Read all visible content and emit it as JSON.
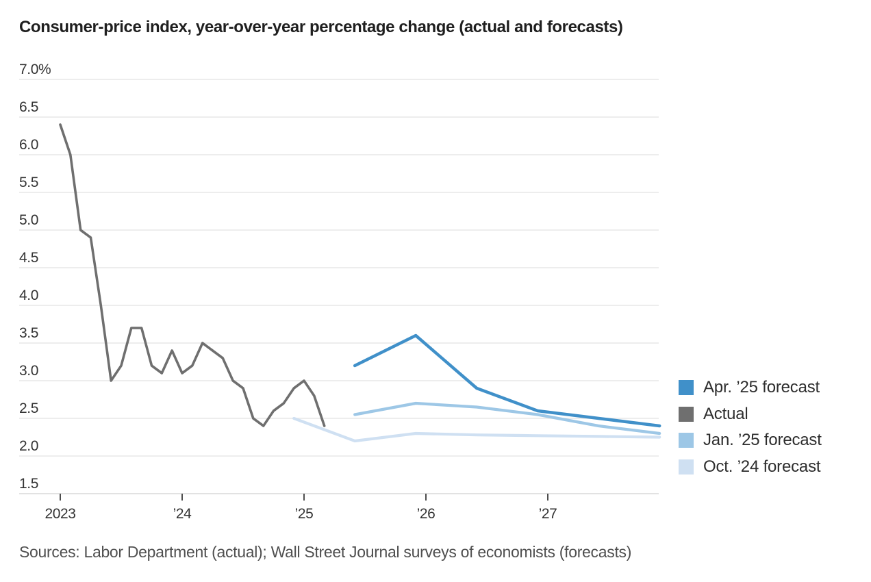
{
  "chart": {
    "title": "Consumer-price index, year-over-year percentage change (actual and forecasts)",
    "source": "Sources: Labor Department (actual); Wall Street Journal surveys of economists (forecasts)"
  },
  "chart_data": {
    "type": "line",
    "title": "Consumer-price index, year-over-year percentage change (actual and forecasts)",
    "ylabel": "Year-over-year percentage change (%)",
    "xlabel": "",
    "grid": "horizontal",
    "legend_position": "right",
    "y_axis": {
      "min": 1.5,
      "max": 7.0,
      "unit": "%",
      "ticks": [
        {
          "value": 7.0,
          "label": "7.0%"
        },
        {
          "value": 6.5,
          "label": "6.5"
        },
        {
          "value": 6.0,
          "label": "6.0"
        },
        {
          "value": 5.5,
          "label": "5.5"
        },
        {
          "value": 5.0,
          "label": "5.0"
        },
        {
          "value": 4.5,
          "label": "4.5"
        },
        {
          "value": 4.0,
          "label": "4.0"
        },
        {
          "value": 3.5,
          "label": "3.5"
        },
        {
          "value": 3.0,
          "label": "3.0"
        },
        {
          "value": 2.5,
          "label": "2.5"
        },
        {
          "value": 2.0,
          "label": "2.0"
        },
        {
          "value": 1.5,
          "label": "1.5"
        }
      ]
    },
    "x_axis": {
      "min": 2023.0,
      "max": 2027.95,
      "ticks": [
        {
          "t": 2023,
          "label": "2023"
        },
        {
          "t": 2024,
          "label": "’24"
        },
        {
          "t": 2025,
          "label": "’25"
        },
        {
          "t": 2026,
          "label": "’26"
        },
        {
          "t": 2027,
          "label": "’27"
        }
      ]
    },
    "series": [
      {
        "id": "oct-24-forecast",
        "name": "Oct. ’24 forecast",
        "color": "#CFE0F2",
        "width": 4.2,
        "points": [
          {
            "period": "Dec 2024",
            "t": 2024.917,
            "value": 2.5
          },
          {
            "period": "Jun 2025",
            "t": 2025.417,
            "value": 2.2
          },
          {
            "period": "Dec 2025",
            "t": 2025.917,
            "value": 2.3
          },
          {
            "period": "Jun 2026",
            "t": 2026.417,
            "value": 2.28
          },
          {
            "period": "Dec 2026",
            "t": 2026.917,
            "value": 2.27
          },
          {
            "period": "Jun 2027",
            "t": 2027.417,
            "value": 2.26
          },
          {
            "period": "Dec 2027",
            "t": 2027.917,
            "value": 2.25
          }
        ]
      },
      {
        "id": "jan-25-forecast",
        "name": "Jan. ’25 forecast",
        "color": "#9DC7E6",
        "width": 4.2,
        "points": [
          {
            "period": "Jun 2025",
            "t": 2025.417,
            "value": 2.55
          },
          {
            "period": "Dec 2025",
            "t": 2025.917,
            "value": 2.7
          },
          {
            "period": "Jun 2026",
            "t": 2026.417,
            "value": 2.65
          },
          {
            "period": "Dec 2026",
            "t": 2026.917,
            "value": 2.55
          },
          {
            "period": "Jun 2027",
            "t": 2027.417,
            "value": 2.4
          },
          {
            "period": "Dec 2027",
            "t": 2027.917,
            "value": 2.3
          }
        ]
      },
      {
        "id": "apr-25-forecast",
        "name": "Apr. ’25 forecast",
        "color": "#4090C9",
        "width": 4.5,
        "points": [
          {
            "period": "Jun 2025",
            "t": 2025.417,
            "value": 3.2
          },
          {
            "period": "Dec 2025",
            "t": 2025.917,
            "value": 3.6
          },
          {
            "period": "Jun 2026",
            "t": 2026.417,
            "value": 2.9
          },
          {
            "period": "Dec 2026",
            "t": 2026.917,
            "value": 2.6
          },
          {
            "period": "Jun 2027",
            "t": 2027.417,
            "value": 2.5
          },
          {
            "period": "Dec 2027",
            "t": 2027.917,
            "value": 2.4
          }
        ]
      },
      {
        "id": "actual",
        "name": "Actual",
        "color": "#6F6F6F",
        "width": 3.6,
        "start_year": 2023,
        "start_month": 1,
        "monthly_values": [
          6.4,
          6.0,
          5.0,
          4.9,
          4.0,
          3.0,
          3.2,
          3.7,
          3.7,
          3.2,
          3.1,
          3.4,
          3.1,
          3.2,
          3.5,
          3.4,
          3.3,
          3.0,
          2.9,
          2.5,
          2.4,
          2.6,
          2.7,
          2.9,
          3.0,
          2.8,
          2.4
        ]
      }
    ],
    "legend": [
      {
        "series_id": "apr-25-forecast",
        "label": "Apr. ’25 forecast",
        "color": "#4090C9"
      },
      {
        "series_id": "actual",
        "label": "Actual",
        "color": "#6F6F6F"
      },
      {
        "series_id": "jan-25-forecast",
        "label": "Jan. ’25 forecast",
        "color": "#9DC7E6"
      },
      {
        "series_id": "oct-24-forecast",
        "label": "Oct. ’24 forecast",
        "color": "#CFE0F2"
      }
    ]
  }
}
